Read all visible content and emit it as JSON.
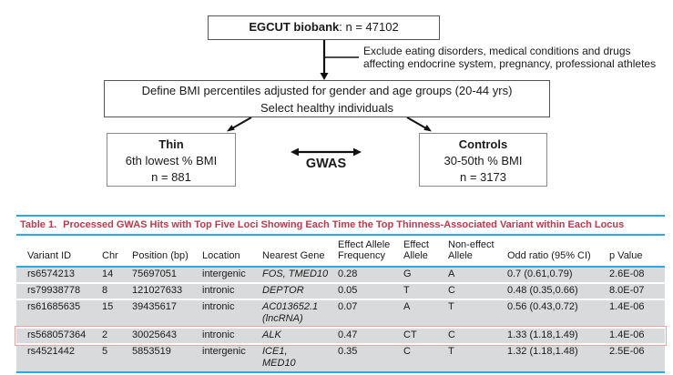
{
  "flowchart": {
    "biobank_title": "EGCUT biobank",
    "biobank_n": ": n = 47102",
    "exclusion_note": "Exclude eating disorders, medical conditions and drugs\naffecting endocrine system, pregnancy, professional athletes",
    "define_line1": "Define BMI percentiles adjusted for gender and age groups (20-44 yrs)",
    "define_line2": "Select healthy individuals",
    "thin_title": "Thin",
    "thin_line2": "6th lowest % BMI",
    "thin_line3": "n = 881",
    "gwas_label": "GWAS",
    "controls_title": "Controls",
    "controls_line2": "30-50th % BMI",
    "controls_line3": "n = 3173"
  },
  "table": {
    "title_label": "Table 1.",
    "title_text": "Processed GWAS Hits with Top Five Loci Showing Each Time the Top Thinness-Associated Variant within Each Locus",
    "columns": [
      "Variant ID",
      "Chr",
      "Position (bp)",
      "Location",
      "Nearest Gene",
      "Effect Allele\nFrequency",
      "Effect\nAllele",
      "Non-effect\nAllele",
      "Odd ratio (95% CI)",
      "p Value"
    ],
    "rows": [
      {
        "variant_id": "rs6574213",
        "chr": "14",
        "position_bp": "75697051",
        "location": "intergenic",
        "nearest_gene": "FOS, TMED10",
        "effect_allele_frequency": "0.28",
        "effect_allele": "G",
        "non_effect_allele": "A",
        "odd_ratio": "0.7 (0.61,0.79)",
        "p_value": "2.6E-08",
        "highlighted": false
      },
      {
        "variant_id": "rs79938778",
        "chr": "8",
        "position_bp": "121027633",
        "location": "intronic",
        "nearest_gene": "DEPTOR",
        "effect_allele_frequency": "0.05",
        "effect_allele": "T",
        "non_effect_allele": "C",
        "odd_ratio": "0.48 (0.35,0.66)",
        "p_value": "8.0E-07",
        "highlighted": false
      },
      {
        "variant_id": "rs61685635",
        "chr": "15",
        "position_bp": "39435617",
        "location": "intronic",
        "nearest_gene": "AC013652.1\n(lncRNA)",
        "effect_allele_frequency": "0.07",
        "effect_allele": "A",
        "non_effect_allele": "T",
        "odd_ratio": "0.56 (0.43,0.72)",
        "p_value": "1.4E-06",
        "highlighted": false
      },
      {
        "variant_id": "rs568057364",
        "chr": "2",
        "position_bp": "30025643",
        "location": "intronic",
        "nearest_gene": "ALK",
        "effect_allele_frequency": "0.47",
        "effect_allele": "CT",
        "non_effect_allele": "C",
        "odd_ratio": "1.33 (1.18,1.49)",
        "p_value": "1.4E-06",
        "highlighted": true
      },
      {
        "variant_id": "rs4521442",
        "chr": "5",
        "position_bp": "5853519",
        "location": "intergenic",
        "nearest_gene": "ICE1,\nMED10",
        "effect_allele_frequency": "0.35",
        "effect_allele": "C",
        "non_effect_allele": "T",
        "odd_ratio": "1.32 (1.18,1.48)",
        "p_value": "2.5E-06",
        "highlighted": false
      }
    ]
  },
  "colors": {
    "accent_blue": "#2da9dd",
    "title_red": "#bc3a4e",
    "row_gray": "#d9dadb",
    "highlight_red": "#f2a29e"
  }
}
